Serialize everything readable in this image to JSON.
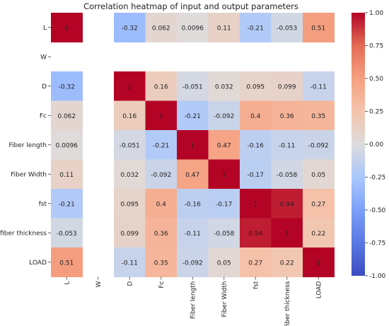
{
  "chart_data": {
    "type": "heatmap",
    "title": "Correlation heatmap of input and output parameters",
    "xlabel": "",
    "ylabel": "",
    "rows": [
      "L",
      "W",
      "D",
      "Fc",
      "Fiber length",
      "Fiber Width",
      "fst",
      "fiber thickness",
      "LOAD"
    ],
    "cols": [
      "L",
      "W",
      "D",
      "Fc",
      "Fiber length",
      "Fiber Width",
      "fst",
      "fiber thickness",
      "LOAD"
    ],
    "values": [
      [
        1,
        null,
        -0.32,
        0.062,
        0.0096,
        0.11,
        -0.21,
        -0.053,
        0.51
      ],
      [
        null,
        null,
        null,
        null,
        null,
        null,
        null,
        null,
        null
      ],
      [
        -0.32,
        null,
        1,
        0.16,
        -0.051,
        0.032,
        0.095,
        0.099,
        -0.11
      ],
      [
        0.062,
        null,
        0.16,
        1,
        -0.21,
        -0.092,
        0.4,
        0.36,
        0.35
      ],
      [
        0.0096,
        null,
        -0.051,
        -0.21,
        1,
        0.47,
        -0.16,
        -0.11,
        -0.092
      ],
      [
        0.11,
        null,
        0.032,
        -0.092,
        0.47,
        1,
        -0.17,
        -0.058,
        0.05
      ],
      [
        -0.21,
        null,
        0.095,
        0.4,
        -0.16,
        -0.17,
        1,
        0.94,
        0.27
      ],
      [
        -0.053,
        null,
        0.099,
        0.36,
        -0.11,
        -0.058,
        0.94,
        1,
        0.22
      ],
      [
        0.51,
        null,
        -0.11,
        0.35,
        -0.092,
        0.05,
        0.27,
        0.22,
        1
      ]
    ],
    "labels": [
      [
        "1",
        "",
        "-0.32",
        "0.062",
        "0.0096",
        "0.11",
        "-0.21",
        "-0.053",
        "0.51"
      ],
      [
        "",
        "",
        "",
        "",
        "",
        "",
        "",
        "",
        ""
      ],
      [
        "-0.32",
        "",
        "1",
        "0.16",
        "-0.051",
        "0.032",
        "0.095",
        "0.099",
        "-0.11"
      ],
      [
        "0.062",
        "",
        "0.16",
        "1",
        "-0.21",
        "-0.092",
        "0.4",
        "0.36",
        "0.35"
      ],
      [
        "0.0096",
        "",
        "-0.051",
        "-0.21",
        "1",
        "0.47",
        "-0.16",
        "-0.11",
        "-0.092"
      ],
      [
        "0.11",
        "",
        "0.032",
        "-0.092",
        "0.47",
        "1",
        "-0.17",
        "-0.058",
        "0.05"
      ],
      [
        "-0.21",
        "",
        "0.095",
        "0.4",
        "-0.16",
        "-0.17",
        "1",
        "0.94",
        "0.27"
      ],
      [
        "-0.053",
        "",
        "0.099",
        "0.36",
        "-0.11",
        "-0.058",
        "0.94",
        "1",
        "0.22"
      ],
      [
        "0.51",
        "",
        "-0.11",
        "0.35",
        "-0.092",
        "0.05",
        "0.27",
        "0.22",
        "1"
      ]
    ],
    "colorbar": {
      "range": [
        -1,
        1
      ],
      "ticks": [
        "1.00",
        "0.75",
        "0.50",
        "0.25",
        "0.00",
        "-0.25",
        "-0.50",
        "-0.75",
        "-1.00"
      ],
      "colormap": "coolwarm",
      "low_color": "#3b4cc0",
      "mid_color": "#dddddd",
      "high_color": "#b40426"
    },
    "grid": false,
    "legend": "right"
  }
}
